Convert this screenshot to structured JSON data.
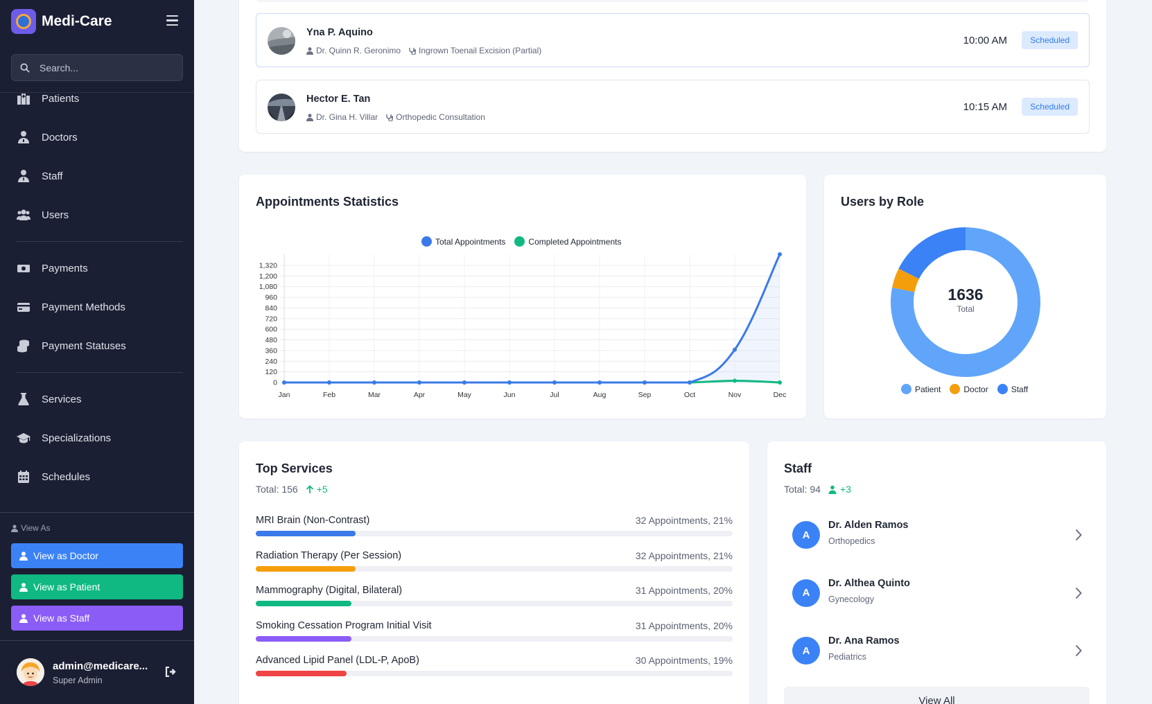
{
  "app": {
    "name": "Medi-Care"
  },
  "search": {
    "placeholder": "Search..."
  },
  "nav": {
    "patients": "Patients",
    "doctors": "Doctors",
    "staff": "Staff",
    "users": "Users",
    "payments": "Payments",
    "payment_methods": "Payment Methods",
    "payment_statuses": "Payment Statuses",
    "services": "Services",
    "specializations": "Specializations",
    "schedules": "Schedules"
  },
  "view_as": {
    "title": "View As",
    "doctor": "View as Doctor",
    "patient": "View as Patient",
    "staff": "View as Staff"
  },
  "user": {
    "email": "admin@medicare...",
    "role": "Super Admin"
  },
  "appointments": [
    {
      "patient": "Yna P. Aquino",
      "doctor": "Dr. Quinn R. Geronimo",
      "service": "Ingrown Toenail Excision (Partial)",
      "time": "10:00 AM",
      "status": "Scheduled"
    },
    {
      "patient": "Hector E. Tan",
      "doctor": "Dr. Gina H. Villar",
      "service": "Orthopedic Consultation",
      "time": "10:15 AM",
      "status": "Scheduled"
    }
  ],
  "appt_stats": {
    "title": "Appointments Statistics"
  },
  "users_by_role": {
    "title": "Users by Role",
    "center_value": "1636",
    "center_label": "Total"
  },
  "top_services": {
    "title": "Top Services",
    "total": "Total: 156",
    "delta": "+5",
    "items": [
      {
        "name": "MRI Brain (Non-Contrast)",
        "value": "32 Appointments, 21%",
        "pct": 21,
        "color": "#3b7ae8"
      },
      {
        "name": "Radiation Therapy (Per Session)",
        "value": "32 Appointments, 21%",
        "pct": 21,
        "color": "#f59e0b"
      },
      {
        "name": "Mammography (Digital, Bilateral)",
        "value": "31 Appointments, 20%",
        "pct": 20,
        "color": "#10b981"
      },
      {
        "name": "Smoking Cessation Program Initial Visit",
        "value": "31 Appointments, 20%",
        "pct": 20,
        "color": "#8b5cf6"
      },
      {
        "name": "Advanced Lipid Panel (LDL-P, ApoB)",
        "value": "30 Appointments, 19%",
        "pct": 19,
        "color": "#ef4444"
      }
    ]
  },
  "staff_panel": {
    "title": "Staff",
    "total": "Total: 94",
    "delta": "+3",
    "items": [
      {
        "initial": "A",
        "name": "Dr. Alden Ramos",
        "spec": "Orthopedics"
      },
      {
        "initial": "A",
        "name": "Dr. Althea Quinto",
        "spec": "Gynecology"
      },
      {
        "initial": "A",
        "name": "Dr. Ana Ramos",
        "spec": "Pediatrics"
      }
    ],
    "view_all": "View All"
  },
  "colors": {
    "primary": "#3b82f6",
    "success": "#10b981",
    "purple": "#8b5cf6",
    "sidebar": "#1b1f33",
    "warning": "#f59e0b"
  },
  "chart_data": [
    {
      "type": "line",
      "title": "Appointments Statistics",
      "categories": [
        "Jan",
        "Feb",
        "Mar",
        "Apr",
        "May",
        "Jun",
        "Jul",
        "Aug",
        "Sep",
        "Oct",
        "Nov",
        "Dec"
      ],
      "series": [
        {
          "name": "Total Appointments",
          "color": "#3b7ae8",
          "values": [
            0,
            0,
            0,
            0,
            0,
            0,
            0,
            0,
            0,
            0,
            370,
            1445
          ]
        },
        {
          "name": "Completed Appointments",
          "color": "#10b981",
          "values": [
            0,
            0,
            0,
            0,
            0,
            0,
            0,
            0,
            0,
            0,
            20,
            0
          ]
        }
      ],
      "yticks": [
        0,
        120,
        240,
        360,
        480,
        600,
        720,
        840,
        960,
        1080,
        1200,
        1320
      ],
      "ytick_labels": [
        "0",
        "120",
        "240",
        "360",
        "480",
        "600",
        "720",
        "840",
        "960",
        "1,080",
        "1,200",
        "1,320"
      ],
      "ylim": [
        0,
        1445
      ],
      "legend": "top",
      "grid": true
    },
    {
      "type": "pie",
      "title": "Users by Role",
      "labels": [
        "Patient",
        "Doctor",
        "Staff"
      ],
      "values": [
        1278,
        70,
        288
      ],
      "colors": [
        "#60a5fa",
        "#f59e0b",
        "#3b82f6"
      ],
      "legend": "bottom"
    }
  ]
}
